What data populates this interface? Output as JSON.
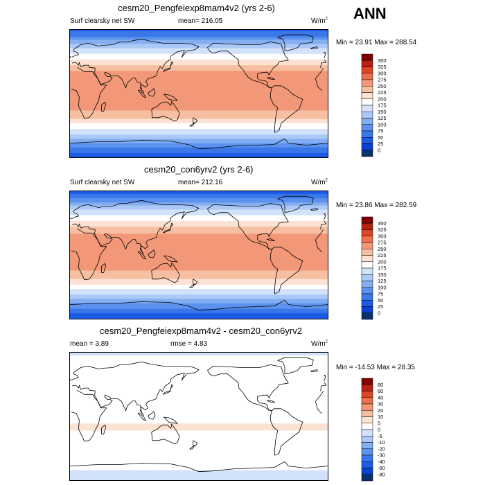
{
  "season_label": "ANN",
  "chart_data": [
    {
      "type": "heatmap",
      "title": "cesm20_Pengfeiexp8mam4v2 (yrs 2-6)",
      "left_label": "Surf clearsky net SW",
      "center_label": "mean= 216.05",
      "units_label": "W/m",
      "units_exp": "2",
      "min_max_label": "Min =  23.91 Max = 288.54",
      "levels": [
        "0",
        "25",
        "50",
        "75",
        "100",
        "125",
        "150",
        "175",
        "200",
        "225",
        "250",
        "275",
        "300",
        "325",
        "350"
      ],
      "colors": [
        "#08306b",
        "#0a3fcf",
        "#1c5be6",
        "#3a78ea",
        "#5c92ee",
        "#84aef2",
        "#acc8f6",
        "#d2e2fa",
        "#ffffff",
        "#fce2d2",
        "#f7bfa2",
        "#f29878",
        "#ec6f4e",
        "#dc4626",
        "#b82010",
        "#800000"
      ],
      "band_lat": [
        90,
        80,
        70,
        60,
        50,
        40,
        30,
        20,
        10,
        0,
        -10,
        -20,
        -30,
        -40,
        -50,
        -60,
        -70,
        -80,
        -90
      ],
      "band_values": [
        40,
        75,
        125,
        165,
        195,
        225,
        255,
        262,
        260,
        255,
        262,
        258,
        240,
        210,
        175,
        140,
        100,
        60,
        30
      ]
    },
    {
      "type": "heatmap",
      "title": "cesm20_con6yrv2 (yrs 2-6)",
      "left_label": "Surf clearsky net SW",
      "center_label": "mean= 212.16",
      "units_label": "W/m",
      "units_exp": "2",
      "min_max_label": "Min =  23.86 Max = 282.59",
      "levels": [
        "0",
        "25",
        "50",
        "75",
        "100",
        "125",
        "150",
        "175",
        "200",
        "225",
        "250",
        "275",
        "300",
        "325",
        "350"
      ],
      "colors": [
        "#08306b",
        "#0a3fcf",
        "#1c5be6",
        "#3a78ea",
        "#5c92ee",
        "#84aef2",
        "#acc8f6",
        "#d2e2fa",
        "#ffffff",
        "#fce2d2",
        "#f7bfa2",
        "#f29878",
        "#ec6f4e",
        "#dc4626",
        "#b82010",
        "#800000"
      ],
      "band_lat": [
        90,
        80,
        70,
        60,
        50,
        40,
        30,
        20,
        10,
        0,
        -10,
        -20,
        -30,
        -40,
        -50,
        -60,
        -70,
        -80,
        -90
      ],
      "band_values": [
        38,
        72,
        122,
        162,
        192,
        222,
        252,
        258,
        256,
        252,
        258,
        254,
        236,
        206,
        170,
        135,
        95,
        55,
        28
      ]
    },
    {
      "type": "heatmap",
      "title": "cesm20_Pengfeiexp8mam4v2 - cesm20_con6yrv2",
      "left_label": "mean =   3.89",
      "center_label": "rmse =   4.83",
      "units_label": "W/m",
      "units_exp": "2",
      "min_max_label": "Min = -14.53 Max =  28.35",
      "levels": [
        "-80",
        "-60",
        "-40",
        "-30",
        "-20",
        "-10",
        "-5",
        "0",
        "5",
        "10",
        "20",
        "30",
        "40",
        "60",
        "80"
      ],
      "colors": [
        "#08306b",
        "#0a3fcf",
        "#1c5be6",
        "#3a78ea",
        "#5c92ee",
        "#84aef2",
        "#acc8f6",
        "#d2e2fa",
        "#ffffff",
        "#fce2d2",
        "#f7bfa2",
        "#f29878",
        "#ec6f4e",
        "#dc4626",
        "#b82010",
        "#800000"
      ],
      "band_lat": [
        90,
        80,
        70,
        60,
        50,
        40,
        30,
        20,
        10,
        0,
        -10,
        -20,
        -30,
        -40,
        -50,
        -60,
        -70,
        -80,
        -90
      ],
      "band_values": [
        -2,
        2,
        3,
        4,
        4,
        5,
        4,
        4,
        4,
        4,
        5,
        5,
        4,
        3,
        2,
        1,
        1,
        -1,
        -1
      ]
    }
  ]
}
